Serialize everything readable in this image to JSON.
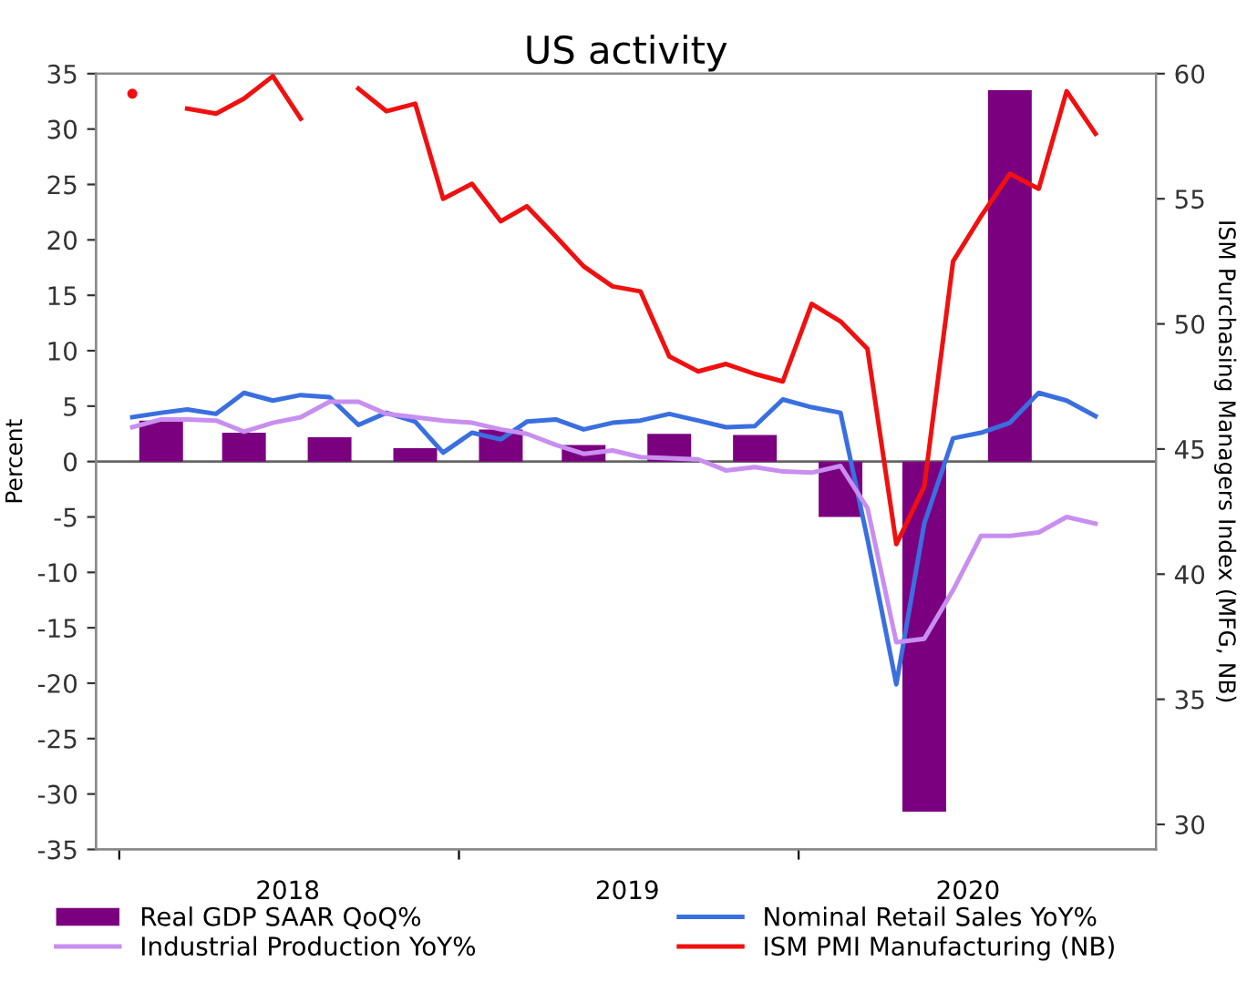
{
  "chart_data": {
    "type": "line",
    "title": "US activity",
    "ylabel": "Percent",
    "y2label": "ISM Purchasing Managers Index (MFG, NB)",
    "xlim": [
      "2017-12-07",
      "2021-01-19"
    ],
    "xticks": [
      {
        "value": "2018-01-01",
        "label": null
      },
      {
        "value": "2018-07-01",
        "label": "2018"
      },
      {
        "value": "2019-01-01",
        "label": null
      },
      {
        "value": "2019-07-01",
        "label": "2019"
      },
      {
        "value": "2020-01-01",
        "label": null
      },
      {
        "value": "2020-07-01",
        "label": "2020"
      }
    ],
    "ylim": [
      -35,
      35
    ],
    "yticks": [
      -35,
      -30,
      -25,
      -20,
      -15,
      -10,
      -5,
      0,
      5,
      10,
      15,
      20,
      25,
      30,
      35
    ],
    "y2lim": [
      29,
      60
    ],
    "y2ticks": [
      30,
      35,
      40,
      45,
      50,
      55,
      60
    ],
    "ref_lines": [
      {
        "axis": "y",
        "value": 0,
        "color": "#666666"
      }
    ],
    "grid": false,
    "legend": "bottom",
    "marker": "none",
    "line_style": "solid",
    "series": [
      {
        "name": "Real GDP SAAR QoQ%",
        "type": "bar",
        "color": "#7b0080",
        "x": [
          "2018-02-15",
          "2018-05-15",
          "2018-08-15",
          "2018-11-15",
          "2019-02-15",
          "2019-05-15",
          "2019-08-15",
          "2019-11-15",
          "2020-02-15",
          "2020-05-15",
          "2020-08-15"
        ],
        "values": [
          3.7,
          2.6,
          2.2,
          1.2,
          2.9,
          1.5,
          2.5,
          2.4,
          -5.0,
          -31.6,
          33.5
        ]
      },
      {
        "name": "Nominal Retail Sales YoY%",
        "color": "#3a6fe0",
        "values": [
          4.0,
          4.4,
          4.7,
          4.3,
          6.2,
          5.5,
          6.0,
          5.8,
          3.3,
          4.4,
          3.6,
          0.8,
          2.6,
          2.0,
          3.6,
          3.8,
          2.9,
          3.5,
          3.7,
          4.3,
          3.7,
          3.1,
          3.2,
          5.6,
          4.9,
          4.4,
          -7.0,
          -20.1,
          -5.6,
          2.1,
          2.6,
          3.5,
          6.2,
          5.5,
          4.1
        ]
      },
      {
        "name": "Industrial Production YoY%",
        "color": "#c88ef0",
        "values": [
          3.1,
          3.8,
          3.8,
          3.7,
          2.7,
          3.5,
          4.0,
          5.4,
          5.4,
          4.3,
          4.0,
          3.7,
          3.5,
          2.9,
          2.5,
          1.5,
          0.7,
          1.0,
          0.4,
          0.3,
          0.2,
          -0.8,
          -0.5,
          -0.9,
          -1.0,
          -0.4,
          -4.2,
          -16.3,
          -16.0,
          -11.6,
          -6.7,
          -6.7,
          -6.4,
          -5.0,
          -5.6
        ]
      },
      {
        "name": "ISM PMI Manufacturing (NB)",
        "axis": "y2",
        "color": "#f01010",
        "values": [
          59.2,
          null,
          58.6,
          58.4,
          59.0,
          59.9,
          58.2,
          null,
          59.4,
          58.5,
          58.8,
          55.0,
          55.6,
          54.1,
          54.7,
          53.5,
          52.3,
          51.5,
          51.3,
          48.7,
          48.1,
          48.4,
          48.0,
          47.7,
          50.8,
          50.1,
          49.0,
          41.2,
          43.5,
          52.5,
          54.3,
          56.0,
          55.4,
          59.3,
          57.6
        ]
      }
    ],
    "x": [
      "2018-01-15",
      "2018-02-15",
      "2018-03-15",
      "2018-04-15",
      "2018-05-15",
      "2018-06-15",
      "2018-07-15",
      "2018-08-15",
      "2018-09-15",
      "2018-10-15",
      "2018-11-15",
      "2018-12-15",
      "2019-01-15",
      "2019-02-15",
      "2019-03-15",
      "2019-04-15",
      "2019-05-15",
      "2019-06-15",
      "2019-07-15",
      "2019-08-15",
      "2019-09-15",
      "2019-10-15",
      "2019-11-15",
      "2019-12-15",
      "2020-01-15",
      "2020-02-15",
      "2020-03-15",
      "2020-04-15",
      "2020-05-15",
      "2020-06-15",
      "2020-07-15",
      "2020-08-15",
      "2020-09-15",
      "2020-10-15",
      "2020-11-15"
    ]
  }
}
